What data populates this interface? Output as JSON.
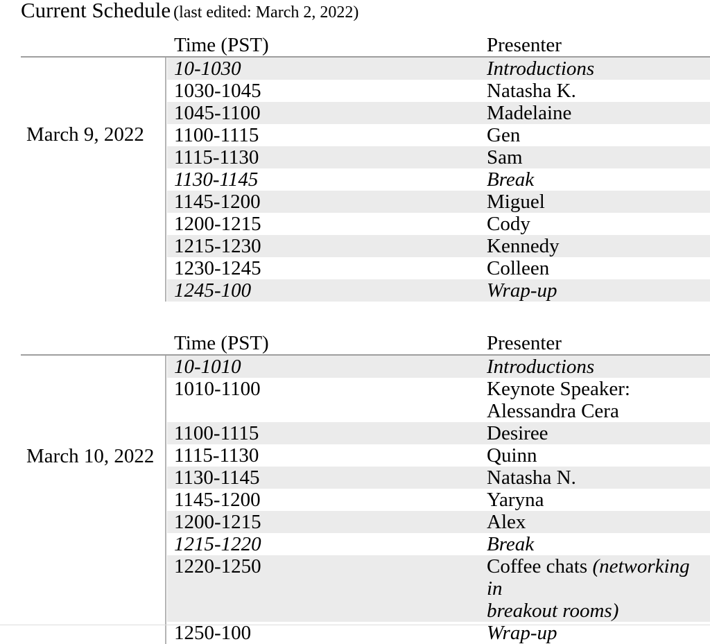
{
  "title": "Current Schedule",
  "subtitle": "(last edited: March 2, 2022)",
  "columns": {
    "time": "Time (PST)",
    "presenter": "Presenter"
  },
  "colors": {
    "row_shade": "#ebebeb",
    "header_rule": "#9e9e9e",
    "column_rule": "#b4b4b4",
    "text": "#000000"
  },
  "tables": [
    {
      "date": "March 9, 2022",
      "rows": [
        {
          "time": "10-1030",
          "time_italic": true,
          "presenter": [
            {
              "text": "Introductions",
              "italic": true
            }
          ]
        },
        {
          "time": "1030-1045",
          "time_italic": false,
          "presenter": [
            {
              "text": "Natasha K.",
              "italic": false
            }
          ]
        },
        {
          "time": "1045-1100",
          "time_italic": false,
          "presenter": [
            {
              "text": "Madelaine",
              "italic": false
            }
          ]
        },
        {
          "time": "1100-1115",
          "time_italic": false,
          "presenter": [
            {
              "text": "Gen",
              "italic": false
            }
          ]
        },
        {
          "time": "1115-1130",
          "time_italic": false,
          "presenter": [
            {
              "text": "Sam",
              "italic": false
            }
          ]
        },
        {
          "time": "1130-1145",
          "time_italic": true,
          "presenter": [
            {
              "text": "Break",
              "italic": true
            }
          ]
        },
        {
          "time": "1145-1200",
          "time_italic": false,
          "presenter": [
            {
              "text": "Miguel",
              "italic": false
            }
          ]
        },
        {
          "time": "1200-1215",
          "time_italic": false,
          "presenter": [
            {
              "text": "Cody",
              "italic": false
            }
          ]
        },
        {
          "time": "1215-1230",
          "time_italic": false,
          "presenter": [
            {
              "text": "Kennedy",
              "italic": false
            }
          ]
        },
        {
          "time": "1230-1245",
          "time_italic": false,
          "presenter": [
            {
              "text": "Colleen",
              "italic": false
            }
          ]
        },
        {
          "time": "1245-100",
          "time_italic": true,
          "presenter": [
            {
              "text": "Wrap-up",
              "italic": true
            }
          ]
        }
      ]
    },
    {
      "date": "March 10, 2022",
      "rows": [
        {
          "time": "10-1010",
          "time_italic": true,
          "presenter": [
            {
              "text": "Introductions",
              "italic": true
            }
          ]
        },
        {
          "time": "1010-1100",
          "time_italic": false,
          "tall": true,
          "presenter": [
            {
              "text": "Keynote Speaker:\nAlessandra Cera",
              "italic": false
            }
          ]
        },
        {
          "time": "1100-1115",
          "time_italic": false,
          "presenter": [
            {
              "text": "Desiree",
              "italic": false
            }
          ]
        },
        {
          "time": "1115-1130",
          "time_italic": false,
          "presenter": [
            {
              "text": "Quinn",
              "italic": false
            }
          ]
        },
        {
          "time": "1130-1145",
          "time_italic": false,
          "presenter": [
            {
              "text": "Natasha N.",
              "italic": false
            }
          ]
        },
        {
          "time": "1145-1200",
          "time_italic": false,
          "presenter": [
            {
              "text": "Yaryna",
              "italic": false
            }
          ]
        },
        {
          "time": "1200-1215",
          "time_italic": false,
          "presenter": [
            {
              "text": "Alex",
              "italic": false
            }
          ]
        },
        {
          "time": "1215-1220",
          "time_italic": true,
          "presenter": [
            {
              "text": "Break",
              "italic": true
            }
          ]
        },
        {
          "time": "1220-1250",
          "time_italic": false,
          "tall": true,
          "presenter": [
            {
              "text": "Coffee chats ",
              "italic": false
            },
            {
              "text": "(networking in\nbreakout rooms)",
              "italic": true
            }
          ]
        },
        {
          "time": "1250-100",
          "time_italic": false,
          "presenter": [
            {
              "text": "Wrap-up",
              "italic": true
            }
          ]
        }
      ]
    }
  ]
}
